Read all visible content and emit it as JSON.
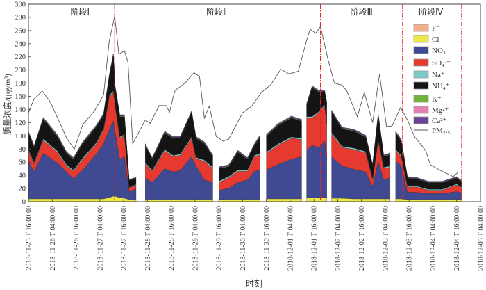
{
  "chart_data": {
    "type": "area",
    "title": "",
    "xlabel": "时刻",
    "ylabel": "质量浓度/(μg/m³)",
    "ylim": [
      0,
      300
    ],
    "yticks": [
      0,
      20,
      40,
      60,
      80,
      100,
      120,
      140,
      160,
      180,
      200,
      220,
      240,
      260,
      280,
      300
    ],
    "x_unit": "hours since 2018-11-25 16:00",
    "xlim": [
      0,
      228
    ],
    "xtick_hours": [
      0,
      12,
      24,
      36,
      48,
      60,
      72,
      84,
      96,
      108,
      120,
      132,
      144,
      156,
      168,
      180,
      192,
      204,
      216,
      228
    ],
    "xtick_labels": [
      "2018-11-25 T 16:00:00",
      "2018-11-26 T 04:00:00",
      "2018-11-26 T 16:00:00",
      "2018-11-27 T 04:00:00",
      "2018-11-27 T 16:00:00",
      "2018-11-28 T 04:00:00",
      "2018-11-28 T 16:00:00",
      "2018-11-29 T 04:00:00",
      "2018-11-29 T 16:00:00",
      "2018-11-30 T 04:00:00",
      "2018-11-30 T 16:00:00",
      "2018-12-01 T 04:00:00",
      "2018-12-01 T 16:00:00",
      "2018-12-02 T 04:00:00",
      "2018-12-02 T 16:00:00",
      "2018-12-03 T 04:00:00",
      "2018-12-03 T 16:00:00",
      "2018-12-04 T 04:00:00",
      "2018-12-04 T 16:00:00",
      "2018-12-05 T 04:00:00"
    ],
    "stages": [
      {
        "label": "阶段Ⅰ",
        "center_hour": 26
      },
      {
        "label": "阶段Ⅱ",
        "center_hour": 95
      },
      {
        "label": "阶段Ⅲ",
        "center_hour": 168
      },
      {
        "label": "阶段Ⅳ",
        "center_hour": 203
      }
    ],
    "stage_boundaries_hours": [
      43.5,
      147.3,
      188.7,
      218.5
    ],
    "components": [
      {
        "key": "F",
        "label": "F⁻",
        "color": "#f4b08e"
      },
      {
        "key": "Cl",
        "label": "Cl⁻",
        "color": "#ece84a"
      },
      {
        "key": "NO3",
        "label": "NO₃⁻",
        "color": "#3f4a92"
      },
      {
        "key": "SO4",
        "label": "SO₄²⁻",
        "color": "#e63a30"
      },
      {
        "key": "Na",
        "label": "Na⁺",
        "color": "#7ec8c8"
      },
      {
        "key": "NH4",
        "label": "NH₄⁺",
        "color": "#141414"
      },
      {
        "key": "K",
        "label": "K⁺",
        "color": "#6fb23e"
      },
      {
        "key": "Mg",
        "label": "Mg²⁺",
        "color": "#e57fb0"
      },
      {
        "key": "Ca",
        "label": "Ca²⁺",
        "color": "#6a4593"
      }
    ],
    "pm25": {
      "label": "PM₂.₅",
      "color": "#555555",
      "points": [
        [
          0,
          135
        ],
        [
          2.8,
          156
        ],
        [
          7,
          168
        ],
        [
          10.9,
          152
        ],
        [
          15.8,
          120
        ],
        [
          19.3,
          96
        ],
        [
          23.1,
          80
        ],
        [
          27.4,
          117
        ],
        [
          33.3,
          138
        ],
        [
          37.9,
          162
        ],
        [
          40.7,
          243
        ],
        [
          43.5,
          282
        ],
        [
          45.6,
          224
        ],
        [
          48.4,
          229
        ],
        [
          50.2,
          212
        ],
        [
          52.6,
          88
        ],
        [
          58.9,
          124
        ],
        [
          61.4,
          119
        ],
        [
          65.9,
          146
        ],
        [
          69.4,
          146
        ],
        [
          71.2,
          136
        ],
        [
          73,
          159
        ],
        [
          74,
          169
        ],
        [
          78.9,
          180
        ],
        [
          83.5,
          196
        ],
        [
          86.3,
          190
        ],
        [
          88.7,
          127
        ],
        [
          91.2,
          145
        ],
        [
          94.7,
          99
        ],
        [
          98.2,
          92
        ],
        [
          101,
          95
        ],
        [
          108,
          135
        ],
        [
          112.6,
          145
        ],
        [
          117.5,
          166
        ],
        [
          122.1,
          177
        ],
        [
          127.3,
          201
        ],
        [
          131.5,
          194
        ],
        [
          136.1,
          198
        ],
        [
          140.3,
          245
        ],
        [
          142.1,
          262
        ],
        [
          144.9,
          256
        ],
        [
          147.3,
          266
        ],
        [
          151.2,
          215
        ],
        [
          154.3,
          180
        ],
        [
          158.2,
          177
        ],
        [
          160.6,
          168
        ],
        [
          165.9,
          129
        ],
        [
          169.4,
          166
        ],
        [
          173.6,
          120
        ],
        [
          177.1,
          194
        ],
        [
          180.6,
          114
        ],
        [
          183.4,
          115
        ],
        [
          187.7,
          143
        ],
        [
          191.2,
          124
        ],
        [
          194.7,
          99
        ],
        [
          200.3,
          78
        ],
        [
          202.8,
          56
        ],
        [
          208.7,
          46
        ],
        [
          214.3,
          38
        ],
        [
          216.8,
          45
        ],
        [
          218.5,
          45
        ]
      ]
    },
    "series_columns": [
      "hour",
      "F",
      "Cl",
      "NO3",
      "SO4",
      "Na",
      "NH4",
      "K",
      "Mg",
      "Ca"
    ],
    "segments": [
      [
        [
          0,
          0.3,
          4,
          57,
          16,
          2,
          25,
          1,
          0.3,
          1.5
        ],
        [
          2.8,
          0.3,
          4,
          42,
          11,
          2,
          23,
          1,
          0.3,
          1.5
        ],
        [
          7.5,
          0.3,
          4,
          69,
          20,
          2,
          30,
          1,
          0.3,
          1.5
        ],
        [
          14.5,
          0.3,
          4,
          55,
          16,
          2,
          22,
          1,
          0.3,
          1.5
        ],
        [
          19.2,
          0.3,
          4,
          41,
          9,
          2,
          17,
          1,
          0.3,
          1.5
        ],
        [
          22.7,
          0.3,
          4,
          31,
          11,
          2,
          16,
          1,
          0.3,
          1.5
        ],
        [
          27.4,
          0.3,
          4,
          44,
          16,
          2,
          22,
          1,
          0.3,
          1.5
        ],
        [
          34.4,
          0.3,
          4,
          69,
          15,
          2,
          24,
          1,
          0.3,
          1.5
        ],
        [
          37.9,
          0.3,
          4,
          84,
          21,
          2,
          20,
          1,
          0.3,
          1.5
        ],
        [
          40.8,
          0.3,
          6,
          104,
          49,
          2,
          29,
          1,
          0.3,
          1.5
        ],
        [
          42.8,
          0.3,
          8,
          114,
          44,
          2,
          54,
          1,
          0.3,
          1.5
        ],
        [
          43.7,
          0.3,
          8,
          98,
          39,
          2,
          26,
          1,
          0.3,
          1.5
        ],
        [
          46.1,
          0.3,
          6,
          58,
          32,
          2,
          31,
          1,
          0.3,
          1.5
        ],
        [
          48.4,
          0.3,
          5,
          63,
          32,
          2,
          27,
          1,
          0.3,
          1.5
        ],
        [
          50.8,
          0.3,
          3,
          12,
          5,
          1,
          11,
          0.5,
          0.3,
          1
        ],
        [
          54.3,
          0.3,
          3,
          16,
          6,
          1,
          9,
          0.5,
          0.3,
          1
        ]
      ],
      [
        [
          58.9,
          0.3,
          3,
          33,
          21,
          2,
          26,
          1,
          0.3,
          1.5
        ],
        [
          62.4,
          0.3,
          3,
          26,
          17,
          2,
          16,
          1,
          0.3,
          1.5
        ],
        [
          68.7,
          0.3,
          3,
          47,
          27,
          2,
          25,
          1,
          0.3,
          1.5
        ],
        [
          73,
          0.3,
          3,
          42,
          23,
          2,
          26,
          1,
          0.3,
          1.5
        ],
        [
          76.5,
          0.3,
          3,
          44,
          23,
          2,
          24,
          1,
          0.3,
          1.5
        ],
        [
          82.3,
          0.3,
          3,
          65,
          28,
          2,
          37,
          1,
          0.3,
          1.5
        ],
        [
          84.5,
          0.3,
          3,
          51,
          11,
          2,
          29,
          1,
          0.3,
          1.5
        ],
        [
          88.7,
          0.3,
          3,
          30,
          28,
          2,
          25,
          1,
          0.3,
          1.5
        ],
        [
          93,
          0.3,
          3,
          26,
          21,
          2,
          16,
          1,
          0.3,
          1.5
        ]
      ],
      [
        [
          96.1,
          0.3,
          3,
          14,
          12,
          2,
          19,
          1,
          0.3,
          1.5
        ],
        [
          101,
          0.3,
          3,
          17,
          16,
          2,
          15,
          1,
          0.3,
          1.5
        ],
        [
          105.6,
          0.3,
          3,
          26,
          17,
          2,
          27,
          1,
          0.3,
          1.5
        ],
        [
          110.5,
          0.3,
          3,
          30,
          13,
          2,
          16,
          1,
          0.3,
          1.5
        ],
        [
          114,
          0.3,
          3,
          43,
          22,
          2,
          15,
          1,
          0.3,
          1.5
        ],
        [
          116.8,
          0.3,
          3,
          45,
          23,
          2,
          25,
          1,
          0.3,
          1.5
        ]
      ],
      [
        [
          120,
          0.3,
          4,
          44,
          25,
          2,
          24,
          1,
          0.3,
          1.5
        ],
        [
          125.6,
          0.3,
          4,
          52,
          29,
          2,
          28,
          1,
          0.3,
          1.5
        ],
        [
          132.6,
          0.3,
          4,
          60,
          32,
          2,
          29,
          1,
          0.3,
          1.5
        ],
        [
          137.8,
          0.3,
          4,
          64,
          26,
          2,
          26,
          1,
          0.3,
          1.5
        ]
      ],
      [
        [
          140.3,
          0.3,
          6,
          72,
          49,
          2,
          17,
          1,
          0.3,
          1.5
        ],
        [
          143.1,
          0.3,
          6,
          79,
          42,
          2,
          44,
          1,
          0.3,
          1.5
        ],
        [
          146.6,
          0.3,
          6,
          76,
          53,
          2,
          29,
          1,
          0.3,
          1.5
        ],
        [
          149.4,
          0.3,
          6,
          86,
          53,
          2,
          19,
          1,
          0.3,
          1.5
        ],
        [
          150.5,
          0.3,
          6,
          58,
          53,
          2,
          29,
          1,
          0.3,
          1.5
        ]
      ],
      [
        [
          152.9,
          0.3,
          5,
          63,
          35,
          2,
          31,
          1,
          0.3,
          1.5
        ],
        [
          158.2,
          0.3,
          5,
          49,
          28,
          2,
          26,
          1,
          0.3,
          1.5
        ],
        [
          164.2,
          0.3,
          4,
          45,
          30,
          2,
          26,
          1,
          0.3,
          1.5
        ],
        [
          170.1,
          0.3,
          4,
          41,
          29,
          2,
          22,
          1,
          0.3,
          1.5
        ],
        [
          173.6,
          0.3,
          4,
          18,
          11,
          2,
          19,
          1,
          0.3,
          1.5
        ],
        [
          176.4,
          0.3,
          4,
          57,
          31,
          2,
          37,
          1,
          0.3,
          1.5
        ],
        [
          179.2,
          0.3,
          4,
          29,
          17,
          2,
          16,
          1,
          0.3,
          1.5
        ],
        [
          182.4,
          0.3,
          4,
          32,
          16,
          2,
          17,
          1,
          0.3,
          1.5
        ]
      ],
      [
        [
          185.2,
          0.3,
          4,
          57,
          16,
          2,
          25,
          1,
          0.3,
          1.5
        ],
        [
          188,
          0.3,
          4,
          51,
          13,
          2,
          22,
          1,
          0.3,
          1.5
        ],
        [
          191.2,
          0.3,
          3,
          11,
          8,
          1.5,
          12,
          0.5,
          0.3,
          1.5
        ],
        [
          195.7,
          0.3,
          3,
          11,
          8,
          1.5,
          11,
          0.5,
          0.3,
          1.5
        ],
        [
          201.7,
          0.3,
          3,
          9,
          5,
          1.5,
          10,
          0.5,
          0.3,
          1.5
        ],
        [
          208.7,
          0.3,
          3,
          9,
          5,
          1.5,
          10,
          0.5,
          0.3,
          1.5
        ],
        [
          216,
          0.3,
          3,
          12,
          10,
          1.5,
          9,
          0.5,
          0.3,
          1.5
        ],
        [
          218.5,
          0.3,
          3,
          10,
          7,
          1.5,
          8,
          0.5,
          0.3,
          1.5
        ]
      ]
    ],
    "legend_position": "right, inside stage IV"
  }
}
